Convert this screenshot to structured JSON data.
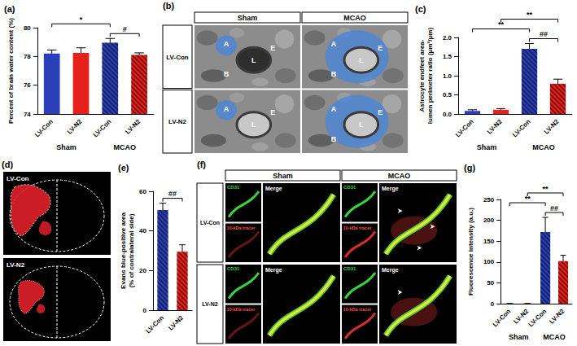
{
  "chart_data": [
    {
      "type": "bar",
      "annotations": [
        "(a)"
      ],
      "y_label": "Percent of brain water content (%)",
      "categories": [
        "LV-Con",
        "LV-N2",
        "LV-Con",
        "LV-N2"
      ],
      "groups": [
        "Sham",
        "Sham",
        "MCAO",
        "MCAO"
      ],
      "values": [
        78.2,
        78.25,
        78.95,
        78.1
      ],
      "errors": [
        0.25,
        0.35,
        0.3,
        0.15
      ],
      "colors": [
        "#2a3fb8",
        "#e8201c",
        "#2a3fb8",
        "#e8201c"
      ],
      "ylim": [
        74,
        80
      ],
      "yticks": [
        74,
        76,
        78,
        80
      ],
      "comparisons": [
        {
          "from": 0,
          "to": 2,
          "label": "*"
        },
        {
          "from": 2,
          "to": 3,
          "label": "#"
        }
      ]
    },
    {
      "type": "bar",
      "annotations": [
        "(c)"
      ],
      "y_label": "Astrocyte endfeet area-\nlumen perimeter ratio (μm²/μm)",
      "categories": [
        "LV-Con",
        "LV-N2",
        "LV-Con",
        "LV-N2"
      ],
      "groups": [
        "Sham",
        "Sham",
        "MCAO",
        "MCAO"
      ],
      "values": [
        0.08,
        0.11,
        1.7,
        0.79
      ],
      "errors": [
        0.03,
        0.03,
        0.14,
        0.12
      ],
      "colors": [
        "#2a3fb8",
        "#e8201c",
        "#2a3fb8",
        "#e8201c"
      ],
      "ylim": [
        0,
        2
      ],
      "yticks": [
        {
          "value": 0,
          "label": "0.0"
        },
        0.5,
        {
          "value": 1,
          "label": "1.0"
        },
        1.5,
        {
          "value": 2,
          "label": "2.0"
        }
      ],
      "comparisons": [
        {
          "from": 0,
          "to": 2,
          "label": "**"
        },
        {
          "from": 1,
          "to": 3,
          "label": "**"
        },
        {
          "from": 2,
          "to": 3,
          "label": "##"
        }
      ]
    },
    {
      "type": "bar",
      "annotations": [
        "(e)"
      ],
      "y_label": "Evans blue-positive area\n(% of contralateral side)",
      "categories": [
        "LV-Con",
        "LV-N2"
      ],
      "values": [
        50.5,
        29.5
      ],
      "errors": [
        3.5,
        3.5
      ],
      "colors": [
        "#2a3fb8",
        "#e8201c"
      ],
      "ylim": [
        0,
        60
      ],
      "yticks": [
        0,
        20,
        40,
        60
      ],
      "comparisons": [
        {
          "from": 0,
          "to": 1,
          "label": "##"
        }
      ]
    },
    {
      "type": "bar",
      "annotations": [
        "(g)"
      ],
      "y_label": "Fluorescence intensity (a.u.)",
      "categories": [
        "LV-Con",
        "LV-N2",
        "LV-Con",
        "LV-N2"
      ],
      "groups": [
        "Sham",
        "Sham",
        "MCAO",
        "MCAO"
      ],
      "values": [
        0.5,
        0.5,
        172,
        102
      ],
      "errors": [
        0,
        0,
        35,
        14
      ],
      "colors": [
        "#2a3fb8",
        "#e8201c",
        "#2a3fb8",
        "#e8201c"
      ],
      "ylim": [
        0,
        250
      ],
      "yticks": [
        0,
        50,
        100,
        150,
        200,
        250
      ],
      "comparisons": [
        {
          "from": 0,
          "to": 2,
          "label": "**"
        },
        {
          "from": 1,
          "to": 3,
          "label": "**"
        },
        {
          "from": 2,
          "to": 3,
          "label": "##"
        }
      ]
    }
  ],
  "panels": [
    {
      "label": "(b)",
      "columns": [
        "Sham",
        "MCAO"
      ],
      "rows": [
        "LV-Con",
        "LV-N2"
      ],
      "cells": [
        [
          [
            "A",
            "L",
            "E",
            "B"
          ],
          [
            "A",
            "L",
            "E",
            "B"
          ]
        ],
        [
          [
            "A",
            "L",
            "E"
          ],
          [
            "A",
            "L",
            "E",
            "B"
          ]
        ]
      ]
    },
    {
      "label": "(d)",
      "rows": [
        "LV-Con",
        "LV-N2"
      ]
    },
    {
      "label": "(f)",
      "columns": [
        "Sham",
        "MCAO"
      ],
      "rows": [
        "LV-Con",
        "LV-N2"
      ],
      "channels": [
        "CD31",
        "10-kDa tracer",
        "Merge"
      ]
    }
  ]
}
